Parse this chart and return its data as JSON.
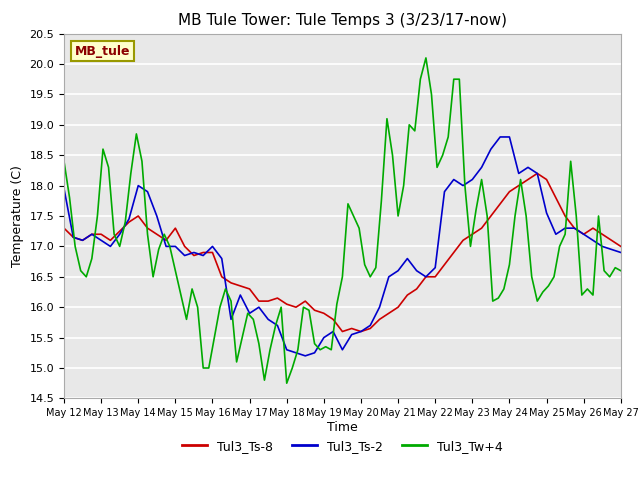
{
  "title": "MB Tule Tower: Tule Temps 3 (3/23/17-now)",
  "xlabel": "Time",
  "ylabel": "Temperature (C)",
  "ylim": [
    14.5,
    20.5
  ],
  "xlim": [
    0,
    15
  ],
  "bg_color": "#e8e8e8",
  "legend_box_label": "MB_tule",
  "xtick_labels": [
    "May 12",
    "May 13",
    "May 14",
    "May 15",
    "May 16",
    "May 17",
    "May 18",
    "May 19",
    "May 20",
    "May 21",
    "May 22",
    "May 23",
    "May 24",
    "May 25",
    "May 26",
    "May 27"
  ],
  "xtick_positions": [
    0,
    1,
    2,
    3,
    4,
    5,
    6,
    7,
    8,
    9,
    10,
    11,
    12,
    13,
    14,
    15
  ],
  "ytick_labels": [
    "14.5",
    "15.0",
    "15.5",
    "16.0",
    "16.5",
    "17.0",
    "17.5",
    "18.0",
    "18.5",
    "19.0",
    "19.5",
    "20.0",
    "20.5"
  ],
  "ytick_positions": [
    14.5,
    15.0,
    15.5,
    16.0,
    16.5,
    17.0,
    17.5,
    18.0,
    18.5,
    19.0,
    19.5,
    20.0,
    20.5
  ],
  "series": {
    "red": {
      "label": "Tul3_Ts-8",
      "color": "#cc0000",
      "x": [
        0,
        0.25,
        0.5,
        0.75,
        1.0,
        1.25,
        1.5,
        1.75,
        2.0,
        2.25,
        2.5,
        2.75,
        3.0,
        3.25,
        3.5,
        3.75,
        4.0,
        4.25,
        4.5,
        4.75,
        5.0,
        5.25,
        5.5,
        5.75,
        6.0,
        6.25,
        6.5,
        6.75,
        7.0,
        7.25,
        7.5,
        7.75,
        8.0,
        8.25,
        8.5,
        8.75,
        9.0,
        9.25,
        9.5,
        9.75,
        10.0,
        10.25,
        10.5,
        10.75,
        11.0,
        11.25,
        11.5,
        11.75,
        12.0,
        12.25,
        12.5,
        12.75,
        13.0,
        13.25,
        13.5,
        13.75,
        14.0,
        14.25,
        14.5,
        14.75,
        15.0
      ],
      "y": [
        17.3,
        17.15,
        17.1,
        17.2,
        17.2,
        17.1,
        17.25,
        17.4,
        17.5,
        17.3,
        17.2,
        17.1,
        17.3,
        17.0,
        16.85,
        16.9,
        16.9,
        16.5,
        16.4,
        16.35,
        16.3,
        16.1,
        16.1,
        16.15,
        16.05,
        16.0,
        16.1,
        15.95,
        15.9,
        15.8,
        15.6,
        15.65,
        15.6,
        15.65,
        15.8,
        15.9,
        16.0,
        16.2,
        16.3,
        16.5,
        16.5,
        16.7,
        16.9,
        17.1,
        17.2,
        17.3,
        17.5,
        17.7,
        17.9,
        18.0,
        18.1,
        18.2,
        18.1,
        17.8,
        17.5,
        17.3,
        17.2,
        17.3,
        17.2,
        17.1,
        17.0
      ]
    },
    "blue": {
      "label": "Tul3_Ts-2",
      "color": "#0000cc",
      "x": [
        0,
        0.25,
        0.5,
        0.75,
        1.0,
        1.25,
        1.5,
        1.75,
        2.0,
        2.25,
        2.5,
        2.75,
        3.0,
        3.25,
        3.5,
        3.75,
        4.0,
        4.25,
        4.5,
        4.75,
        5.0,
        5.25,
        5.5,
        5.75,
        6.0,
        6.25,
        6.5,
        6.75,
        7.0,
        7.25,
        7.5,
        7.75,
        8.0,
        8.25,
        8.5,
        8.75,
        9.0,
        9.25,
        9.5,
        9.75,
        10.0,
        10.25,
        10.5,
        10.75,
        11.0,
        11.25,
        11.5,
        11.75,
        12.0,
        12.25,
        12.5,
        12.75,
        13.0,
        13.25,
        13.5,
        13.75,
        14.0,
        14.25,
        14.5,
        14.75,
        15.0
      ],
      "y": [
        17.95,
        17.15,
        17.1,
        17.2,
        17.1,
        17.0,
        17.2,
        17.45,
        18.0,
        17.9,
        17.5,
        17.0,
        17.0,
        16.85,
        16.9,
        16.85,
        17.0,
        16.8,
        15.8,
        16.2,
        15.9,
        16.0,
        15.8,
        15.7,
        15.3,
        15.25,
        15.2,
        15.25,
        15.5,
        15.6,
        15.3,
        15.55,
        15.6,
        15.7,
        16.0,
        16.5,
        16.6,
        16.8,
        16.6,
        16.5,
        16.65,
        17.9,
        18.1,
        18.0,
        18.1,
        18.3,
        18.6,
        18.8,
        18.8,
        18.2,
        18.3,
        18.2,
        17.55,
        17.2,
        17.3,
        17.3,
        17.2,
        17.1,
        17.0,
        16.95,
        16.9
      ]
    },
    "green": {
      "label": "Tul3_Tw+4",
      "color": "#00aa00",
      "x": [
        0,
        0.15,
        0.3,
        0.45,
        0.6,
        0.75,
        0.9,
        1.05,
        1.2,
        1.35,
        1.5,
        1.65,
        1.8,
        1.95,
        2.1,
        2.25,
        2.4,
        2.55,
        2.7,
        2.85,
        3.0,
        3.15,
        3.3,
        3.45,
        3.6,
        3.75,
        3.9,
        4.05,
        4.2,
        4.35,
        4.5,
        4.65,
        4.8,
        4.95,
        5.1,
        5.25,
        5.4,
        5.55,
        5.7,
        5.85,
        6.0,
        6.15,
        6.3,
        6.45,
        6.6,
        6.75,
        6.9,
        7.05,
        7.2,
        7.35,
        7.5,
        7.65,
        7.8,
        7.95,
        8.1,
        8.25,
        8.4,
        8.55,
        8.7,
        8.85,
        9.0,
        9.15,
        9.3,
        9.45,
        9.6,
        9.75,
        9.9,
        10.05,
        10.2,
        10.35,
        10.5,
        10.65,
        10.8,
        10.95,
        11.1,
        11.25,
        11.4,
        11.55,
        11.7,
        11.85,
        12.0,
        12.15,
        12.3,
        12.45,
        12.6,
        12.75,
        12.9,
        13.05,
        13.2,
        13.35,
        13.5,
        13.65,
        13.8,
        13.95,
        14.1,
        14.25,
        14.4,
        14.55,
        14.7,
        14.85,
        15.0
      ],
      "y": [
        18.4,
        17.8,
        17.0,
        16.6,
        16.5,
        16.8,
        17.5,
        18.6,
        18.3,
        17.2,
        17.0,
        17.4,
        18.2,
        18.85,
        18.4,
        17.2,
        16.5,
        16.95,
        17.2,
        17.0,
        16.6,
        16.2,
        15.8,
        16.3,
        16.0,
        15.0,
        15.0,
        15.5,
        16.0,
        16.3,
        16.1,
        15.1,
        15.5,
        15.9,
        15.8,
        15.4,
        14.8,
        15.3,
        15.7,
        16.0,
        14.75,
        15.0,
        15.3,
        16.0,
        15.95,
        15.4,
        15.3,
        15.35,
        15.3,
        16.05,
        16.5,
        17.7,
        17.5,
        17.3,
        16.7,
        16.5,
        16.65,
        17.75,
        19.1,
        18.5,
        17.5,
        18.0,
        19.0,
        18.9,
        19.75,
        20.1,
        19.5,
        18.3,
        18.5,
        18.8,
        19.75,
        19.75,
        18.0,
        17.0,
        17.6,
        18.1,
        17.5,
        16.1,
        16.15,
        16.3,
        16.7,
        17.5,
        18.1,
        17.5,
        16.5,
        16.1,
        16.25,
        16.35,
        16.5,
        17.0,
        17.2,
        18.4,
        17.5,
        16.2,
        16.3,
        16.2,
        17.5,
        16.6,
        16.5,
        16.65,
        16.6
      ]
    }
  }
}
